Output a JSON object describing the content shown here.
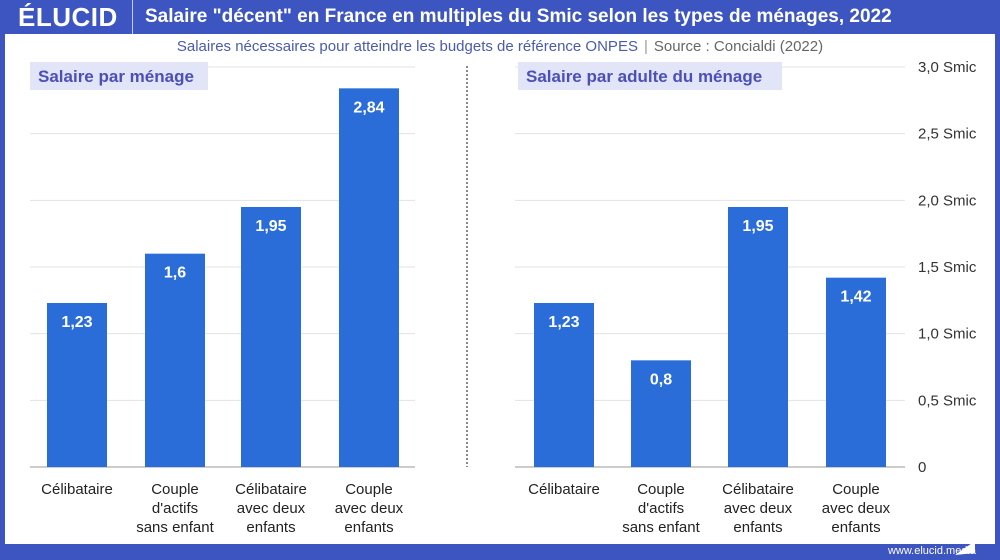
{
  "header": {
    "logo": "ÉLUCID",
    "title": "Salaire \"décent\" en France en multiples du Smic selon les types de ménages, 2022"
  },
  "subtitle": {
    "text": "Salaires nécessaires pour atteindre les budgets de référence ONPES",
    "source": "Source : Concialdi (2022)"
  },
  "footer": {
    "url": "www.elucid.media"
  },
  "colors": {
    "bar": "#2b6dd8",
    "frame": "#3d55c1",
    "panel_label_bg": "#e2e4f7",
    "panel_label_text": "#4a50b8"
  },
  "chart_data": [
    {
      "type": "bar",
      "title": "Salaire par ménage",
      "categories": [
        "Célibataire",
        "Couple d'actifs sans enfant",
        "Célibataire avec deux enfants",
        "Couple avec deux enfants"
      ],
      "values": [
        1.23,
        1.6,
        1.95,
        2.84
      ],
      "value_labels": [
        "1,23",
        "1,6",
        "1,95",
        "2,84"
      ],
      "ylim": [
        0,
        3
      ],
      "grid": true
    },
    {
      "type": "bar",
      "title": "Salaire par adulte du ménage",
      "categories": [
        "Célibataire",
        "Couple d'actifs sans enfant",
        "Célibataire avec deux enfants",
        "Couple avec deux enfants"
      ],
      "values": [
        1.23,
        0.8,
        1.95,
        1.42
      ],
      "value_labels": [
        "1,23",
        "0,8",
        "1,95",
        "1,42"
      ],
      "ylim": [
        0,
        3
      ],
      "grid": true,
      "yticks": [
        "0",
        "0,5 Smic",
        "1,0 Smic",
        "1,5 Smic",
        "2,0 Smic",
        "2,5 Smic",
        "3,0 Smic"
      ]
    }
  ],
  "category_lines": [
    [
      "Célibataire"
    ],
    [
      "Couple",
      "d'actifs",
      "sans enfant"
    ],
    [
      "Célibataire",
      "avec deux",
      "enfants"
    ],
    [
      "Couple",
      "avec deux",
      "enfants"
    ]
  ]
}
